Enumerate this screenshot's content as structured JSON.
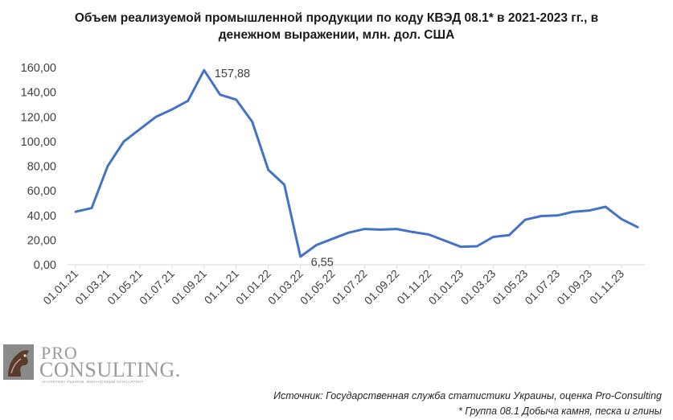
{
  "title_lines": [
    "Объем реализуемой промышленной продукции по коду КВЭД 08.1* в 2021-2023 гг., в",
    "денежном выражении, млн. дол. США"
  ],
  "logo": {
    "word1": "PRO",
    "word2": "CONSULTING.",
    "tagline": "АНАЛИТИКА РЫНКОВ. ФИНАНСОВЫЙ КОНСАЛТИНГ"
  },
  "footnotes": {
    "source": "Источник: Государственная служба статистики Украины, оценка Pro-Consulting",
    "note": "* Группа 08.1 Добыча камня, песка и глины"
  },
  "colors": {
    "line": "#4472C4",
    "axis": "#d9d9d9",
    "text": "#404040"
  },
  "chart_data": {
    "type": "line",
    "title": "Объем реализуемой промышленной продукции по коду КВЭД 08.1* в 2021-2023 гг., в денежном выражении, млн. дол. США",
    "xlabel": "",
    "ylabel": "",
    "ylim": [
      0,
      160
    ],
    "yticks": [
      "0,00",
      "20,00",
      "40,00",
      "60,00",
      "80,00",
      "100,00",
      "120,00",
      "140,00",
      "160,00"
    ],
    "grid": false,
    "legend": "none",
    "tick_labels_shown": [
      "01.01.21",
      "01.03.21",
      "01.05.21",
      "01.07.21",
      "01.09.21",
      "01.11.21",
      "01.01.22",
      "01.03.22",
      "01.05.22",
      "01.07.22",
      "01.09.22",
      "01.11.22",
      "01.01.23",
      "01.03.23",
      "01.05.23",
      "01.07.23",
      "01.09.23",
      "01.11.23"
    ],
    "x": [
      "01.01.21",
      "01.02.21",
      "01.03.21",
      "01.04.21",
      "01.05.21",
      "01.06.21",
      "01.07.21",
      "01.08.21",
      "01.09.21",
      "01.10.21",
      "01.11.21",
      "01.12.21",
      "01.01.22",
      "01.02.22",
      "01.03.22",
      "01.04.22",
      "01.05.22",
      "01.06.22",
      "01.07.22",
      "01.08.22",
      "01.09.22",
      "01.10.22",
      "01.11.22",
      "01.12.22",
      "01.01.23",
      "01.02.23",
      "01.03.23",
      "01.04.23",
      "01.05.23",
      "01.06.23",
      "01.07.23",
      "01.08.23",
      "01.09.23",
      "01.10.23",
      "01.11.23",
      "01.12.23"
    ],
    "series": [
      {
        "values": [
          43,
          46,
          80,
          100,
          110,
          120,
          126,
          133,
          157.88,
          138,
          134,
          116,
          77,
          65,
          6.55,
          16,
          21,
          26,
          29,
          28.5,
          29,
          26.5,
          24.5,
          19.5,
          14.5,
          15,
          22.5,
          24,
          36.5,
          39.5,
          40,
          43,
          44,
          47,
          37,
          30.5
        ]
      }
    ],
    "annotations": [
      {
        "index": 8,
        "text": "157,88"
      },
      {
        "index": 14,
        "text": "6,55"
      }
    ]
  }
}
